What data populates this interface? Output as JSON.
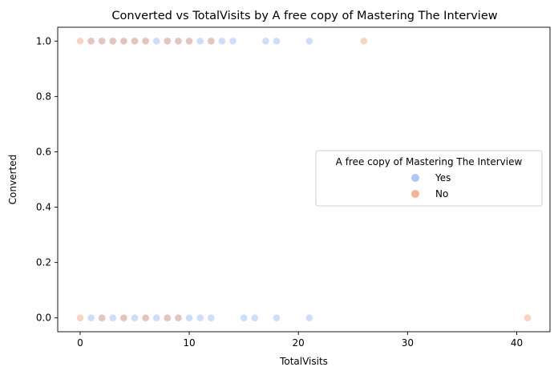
{
  "chart_data": {
    "type": "scatter",
    "title": "Converted vs TotalVisits by A free copy of Mastering The Interview",
    "xlabel": "TotalVisits",
    "ylabel": "Converted",
    "xlim": [
      -2.05,
      43.05
    ],
    "ylim": [
      -0.05,
      1.05
    ],
    "x_ticks": [
      0,
      10,
      20,
      30,
      40
    ],
    "y_ticks": [
      0.0,
      0.2,
      0.4,
      0.6,
      0.8,
      1.0
    ],
    "x_tick_labels": [
      "0",
      "10",
      "20",
      "30",
      "40"
    ],
    "y_tick_labels": [
      "0.0",
      "0.2",
      "0.4",
      "0.6",
      "0.8",
      "1.0"
    ],
    "grid": false,
    "legend": {
      "title": "A free copy of Mastering The Interview",
      "placement": "center-right"
    },
    "series": [
      {
        "name": "Yes",
        "color": "#aec7f6",
        "x": [
          1,
          2,
          3,
          4,
          5,
          6,
          7,
          8,
          9,
          10,
          11,
          12,
          13,
          14,
          17,
          18,
          21,
          1,
          2,
          3,
          4,
          5,
          6,
          7,
          8,
          9,
          10,
          11,
          12,
          15,
          16,
          18,
          21
        ],
        "y": [
          1,
          1,
          1,
          1,
          1,
          1,
          1,
          1,
          1,
          1,
          1,
          1,
          1,
          1,
          1,
          1,
          1,
          0,
          0,
          0,
          0,
          0,
          0,
          0,
          0,
          0,
          0,
          0,
          0,
          0,
          0,
          0,
          0
        ]
      },
      {
        "name": "No",
        "color": "#f4b596",
        "x": [
          0,
          1,
          2,
          3,
          4,
          5,
          6,
          8,
          9,
          10,
          12,
          26,
          0,
          2,
          4,
          6,
          8,
          9,
          41
        ],
        "y": [
          1,
          1,
          1,
          1,
          1,
          1,
          1,
          1,
          1,
          1,
          1,
          1,
          0,
          0,
          0,
          0,
          0,
          0,
          0
        ]
      }
    ]
  }
}
